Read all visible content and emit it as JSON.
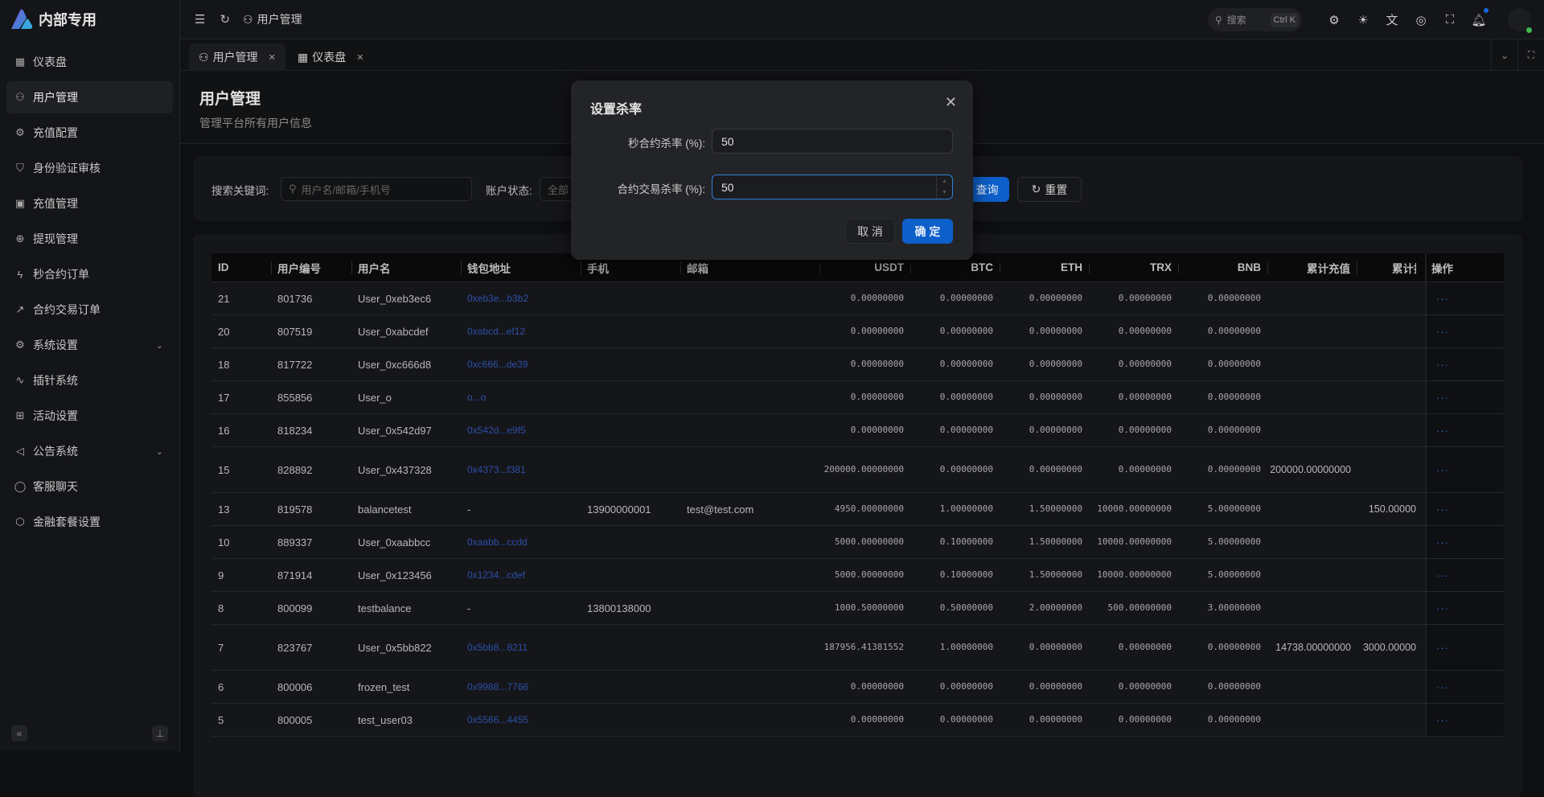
{
  "app": {
    "logo_text": "内部专用"
  },
  "sidebar": {
    "items": [
      {
        "label": "仪表盘",
        "icon": "dashboard-icon"
      },
      {
        "label": "用户管理",
        "icon": "users-icon",
        "active": true
      },
      {
        "label": "充值配置",
        "icon": "gear-icon"
      },
      {
        "label": "身份验证审核",
        "icon": "shield-check-icon"
      },
      {
        "label": "充值管理",
        "icon": "wallet-icon"
      },
      {
        "label": "提现管理",
        "icon": "arrow-up-circle-icon"
      },
      {
        "label": "秒合约订单",
        "icon": "lightning-icon"
      },
      {
        "label": "合约交易订单",
        "icon": "trending-up-icon"
      },
      {
        "label": "系统设置",
        "icon": "gear-icon",
        "expandable": true
      },
      {
        "label": "插针系统",
        "icon": "activity-icon"
      },
      {
        "label": "活动设置",
        "icon": "gift-icon"
      },
      {
        "label": "公告系统",
        "icon": "megaphone-icon",
        "expandable": true
      },
      {
        "label": "客服聊天",
        "icon": "chat-icon"
      },
      {
        "label": "金融套餐设置",
        "icon": "package-icon"
      }
    ]
  },
  "header": {
    "breadcrumb": "用户管理",
    "search_label": "搜索",
    "search_shortcut": "Ctrl K"
  },
  "tabs": [
    {
      "label": "用户管理",
      "active": true
    },
    {
      "label": "仪表盘"
    }
  ],
  "page": {
    "title": "用户管理",
    "subtitle": "管理平台所有用户信息"
  },
  "filters": {
    "keyword_label": "搜索关键词:",
    "keyword_placeholder": "用户名/邮箱/手机号",
    "status_label": "账户状态:",
    "status_value": "全部",
    "query_label": "查询",
    "reset_label": "重置"
  },
  "table": {
    "columns": [
      "ID",
      "用户编号",
      "用户名",
      "钱包地址",
      "手机",
      "邮箱",
      "USDT",
      "BTC",
      "ETH",
      "TRX",
      "BNB",
      "累计充值",
      "累计提现",
      "操作"
    ],
    "rows": [
      [
        "21",
        "801736",
        "User_0xeb3ec6",
        "0xeb3e...b3b2",
        "",
        "",
        "0.00000000",
        "0.00000000",
        "0.00000000",
        "0.00000000",
        "0.00000000",
        "",
        ""
      ],
      [
        "20",
        "807519",
        "User_0xabcdef",
        "0xabcd...ef12",
        "",
        "",
        "0.00000000",
        "0.00000000",
        "0.00000000",
        "0.00000000",
        "0.00000000",
        "",
        ""
      ],
      [
        "18",
        "817722",
        "User_0xc666d8",
        "0xc666...de39",
        "",
        "",
        "0.00000000",
        "0.00000000",
        "0.00000000",
        "0.00000000",
        "0.00000000",
        "",
        ""
      ],
      [
        "17",
        "855856",
        "User_o",
        "o...o",
        "",
        "",
        "0.00000000",
        "0.00000000",
        "0.00000000",
        "0.00000000",
        "0.00000000",
        "",
        ""
      ],
      [
        "16",
        "818234",
        "User_0x542d97",
        "0x542d...e9f5",
        "",
        "",
        "0.00000000",
        "0.00000000",
        "0.00000000",
        "0.00000000",
        "0.00000000",
        "",
        ""
      ],
      [
        "15",
        "828892",
        "User_0x437328",
        "0x4373...f381",
        "",
        "",
        "200000.00000000",
        "0.00000000",
        "0.00000000",
        "0.00000000",
        "0.00000000",
        "200000.00000000",
        ""
      ],
      [
        "13",
        "819578",
        "balancetest",
        "-",
        "13900000001",
        "test@test.com",
        "4950.00000000",
        "1.00000000",
        "1.50000000",
        "10000.00000000",
        "5.00000000",
        "",
        "150.00000"
      ],
      [
        "10",
        "889337",
        "User_0xaabbcc",
        "0xaabb...ccdd",
        "",
        "",
        "5000.00000000",
        "0.10000000",
        "1.50000000",
        "10000.00000000",
        "5.00000000",
        "",
        ""
      ],
      [
        "9",
        "871914",
        "User_0x123456",
        "0x1234...cdef",
        "",
        "",
        "5000.00000000",
        "0.10000000",
        "1.50000000",
        "10000.00000000",
        "5.00000000",
        "",
        ""
      ],
      [
        "8",
        "800099",
        "testbalance",
        "-",
        "13800138000",
        "",
        "1000.50000000",
        "0.50000000",
        "2.00000000",
        "500.00000000",
        "3.00000000",
        "",
        ""
      ],
      [
        "7",
        "823767",
        "User_0x5bb822",
        "0x5bb8...8211",
        "",
        "",
        "187956.41381552",
        "1.00000000",
        "0.00000000",
        "0.00000000",
        "0.00000000",
        "14738.00000000",
        "3000.00000"
      ],
      [
        "6",
        "800006",
        "frozen_test",
        "0x9988...7766",
        "",
        "",
        "0.00000000",
        "0.00000000",
        "0.00000000",
        "0.00000000",
        "0.00000000",
        "",
        ""
      ],
      [
        "5",
        "800005",
        "test_user03",
        "0x5566...4455",
        "",
        "",
        "0.00000000",
        "0.00000000",
        "0.00000000",
        "0.00000000",
        "0.00000000",
        "",
        ""
      ]
    ],
    "action_label": "···"
  },
  "modal": {
    "title": "设置杀率",
    "fields": [
      {
        "label": "秒合约杀率 (%):",
        "value": "50"
      },
      {
        "label": "合约交易杀率 (%):",
        "value": "50"
      }
    ],
    "cancel_label": "取 消",
    "confirm_label": "确 定"
  },
  "colors": {
    "primary": "#0d5fc9",
    "link": "#2d4fa8",
    "online": "#3fb950",
    "background": "#0e0f11"
  }
}
